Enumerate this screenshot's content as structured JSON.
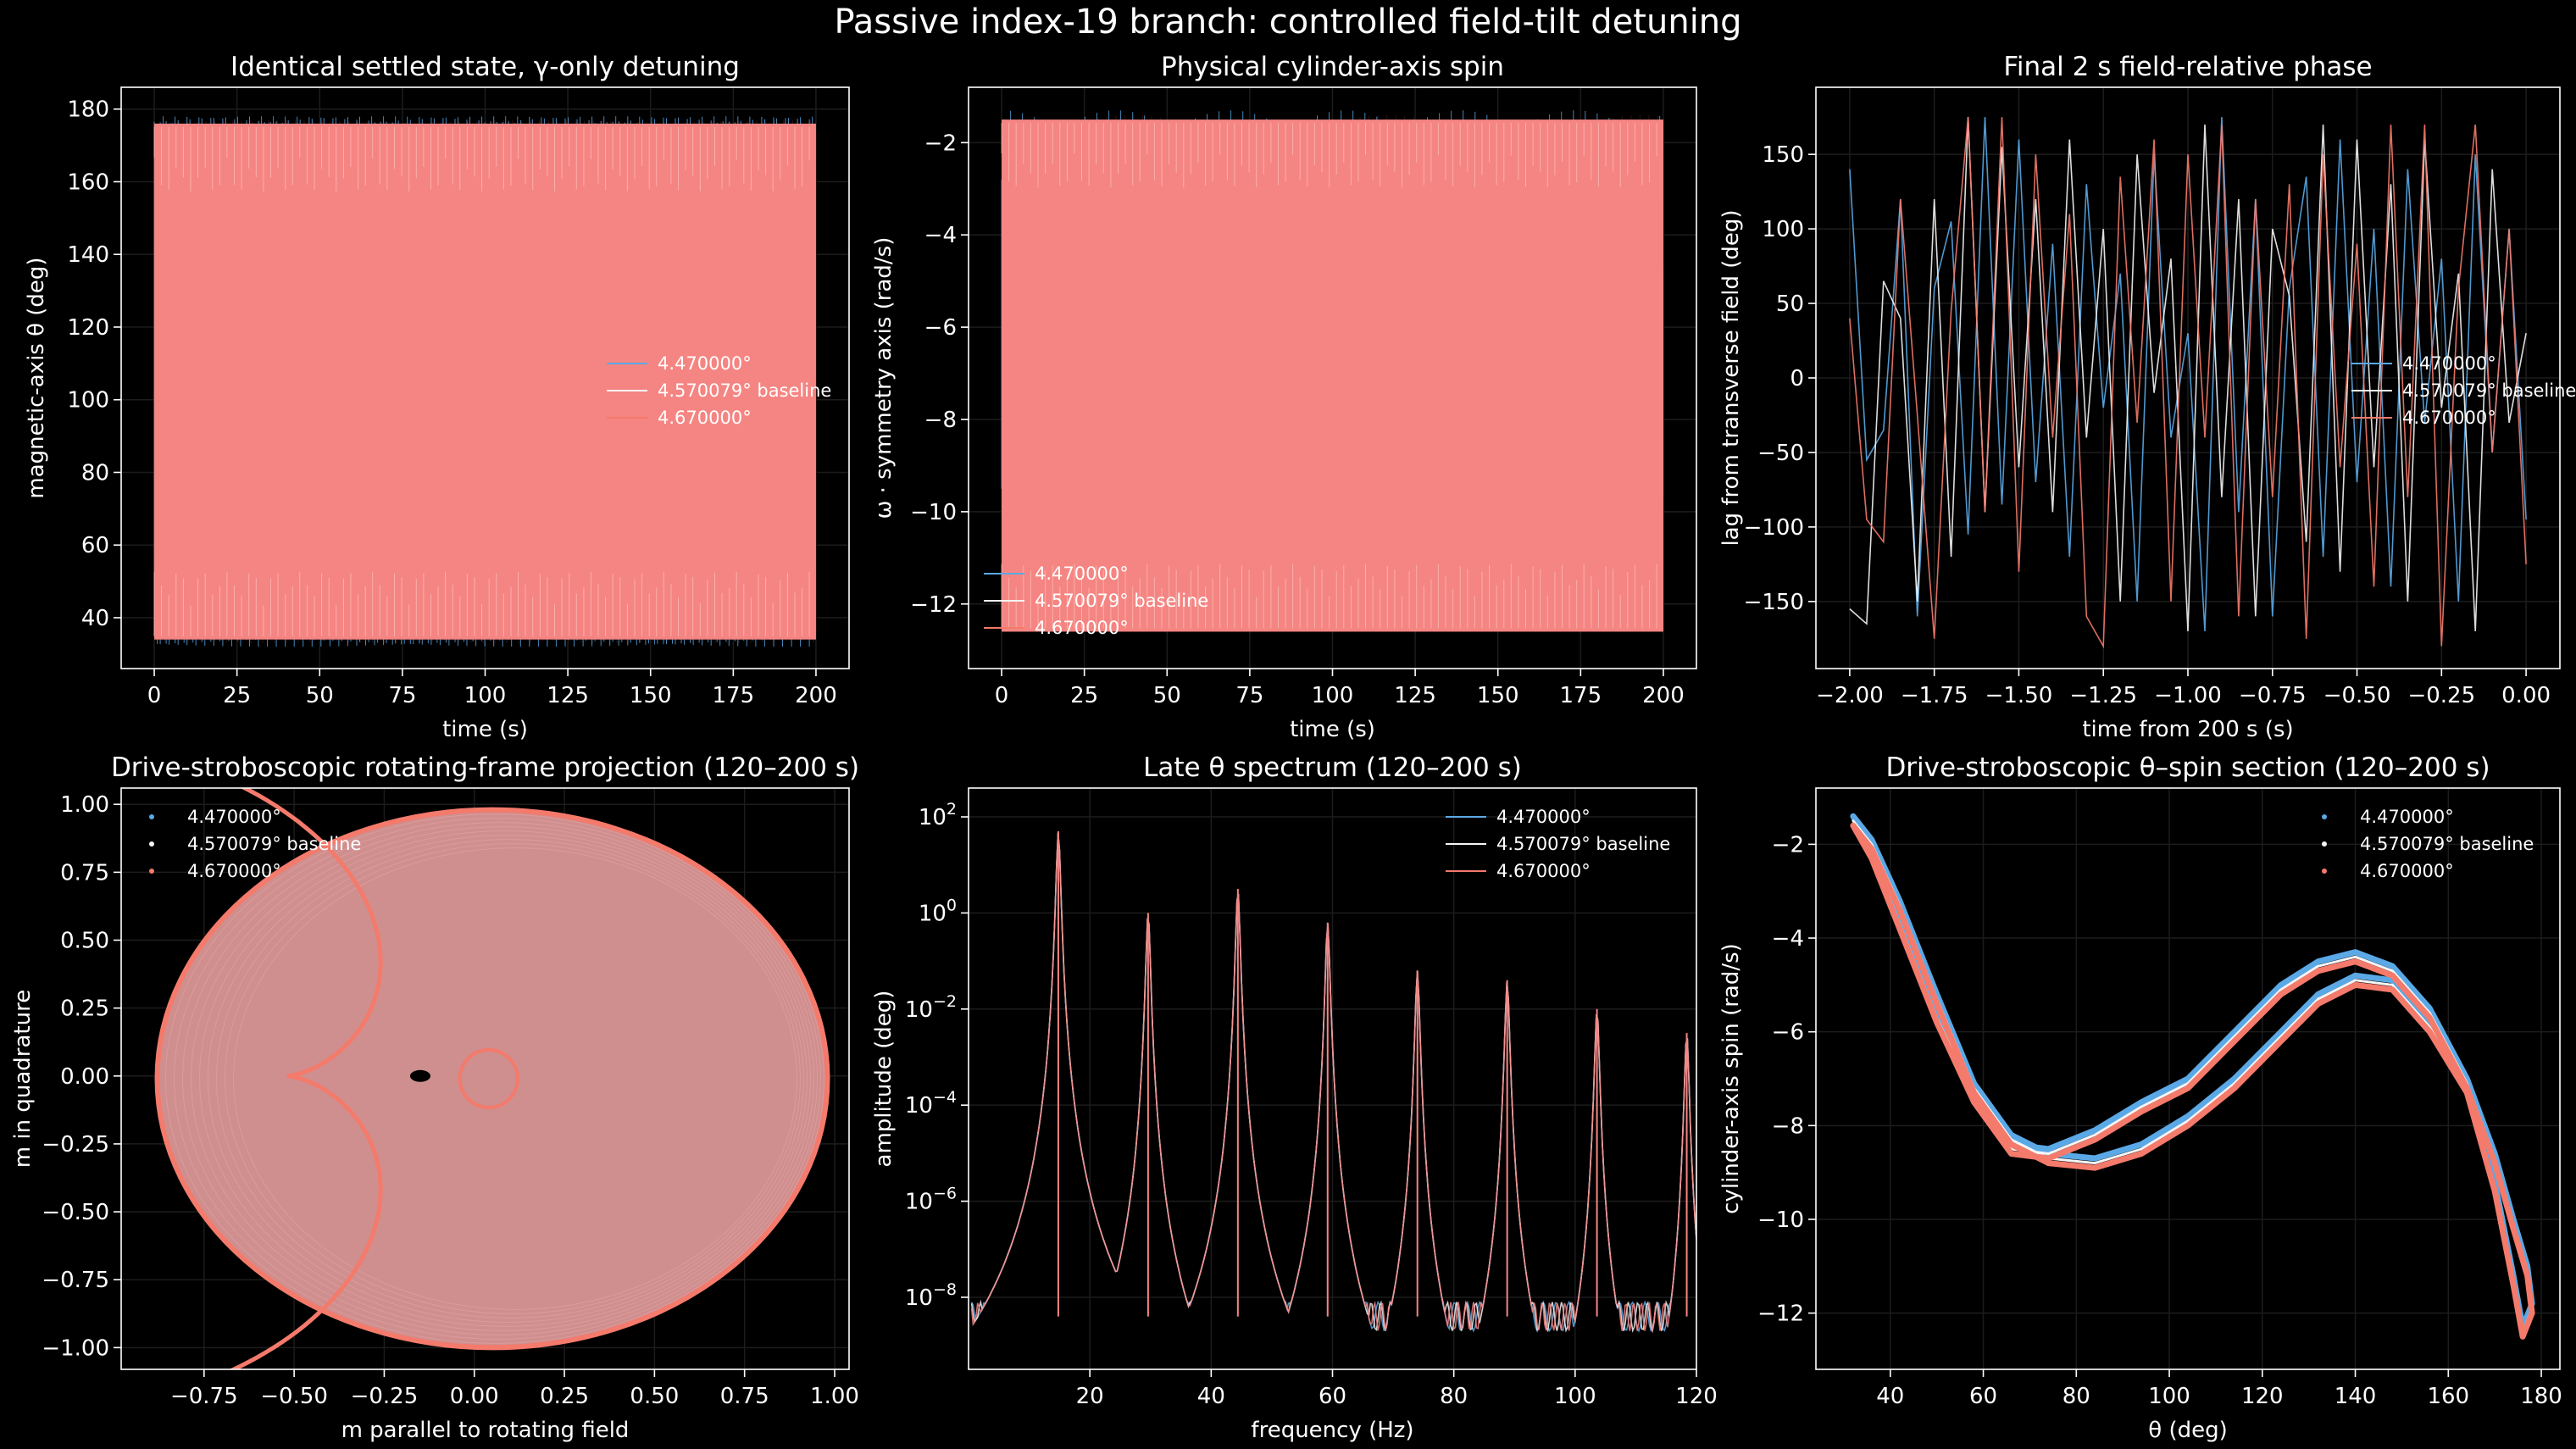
{
  "figure": {
    "suptitle": "Passive index-19 branch: controlled field-tilt detuning",
    "colors": {
      "a": "#5aa9e6",
      "b": "#f5f5f5",
      "c": "#f47a6b",
      "fill": "#f58582",
      "bg": "#000000"
    }
  },
  "chart_data": [
    {
      "type": "line",
      "title": "Identical settled state, γ-only detuning",
      "xlabel": "time (s)",
      "ylabel": "magnetic-axis θ (deg)",
      "xlim": [
        -10,
        210
      ],
      "ylim": [
        26,
        186
      ],
      "xticks": [
        0,
        25,
        50,
        75,
        100,
        125,
        150,
        175,
        200
      ],
      "yticks": [
        40,
        60,
        80,
        100,
        120,
        140,
        160,
        180
      ],
      "legend": [
        "4.470000°",
        "4.570079° baseline",
        "4.670000°"
      ],
      "legend_loc": "center right",
      "series": [
        {
          "name": "4.470000°",
          "envelope": {
            "x": [
              0,
              200
            ],
            "min": [
              32,
              32
            ],
            "max": [
              178,
              178
            ]
          }
        },
        {
          "name": "4.570079° baseline",
          "envelope": {
            "x": [
              0,
              200
            ],
            "min": [
              33,
              33
            ],
            "max": [
              177,
              177
            ]
          }
        },
        {
          "name": "4.670000°",
          "envelope": {
            "x": [
              0,
              200
            ],
            "min": [
              34,
              34
            ],
            "max": [
              176,
              176
            ]
          }
        }
      ]
    },
    {
      "type": "line",
      "title": "Physical cylinder-axis spin",
      "xlabel": "time (s)",
      "ylabel": "ω · symmetry axis (rad/s)",
      "xlim": [
        -10,
        210
      ],
      "ylim": [
        -13.4,
        -0.8
      ],
      "xticks": [
        0,
        25,
        50,
        75,
        100,
        125,
        150,
        175,
        200
      ],
      "yticks": [
        -12,
        -10,
        -8,
        -6,
        -4,
        -2
      ],
      "legend": [
        "4.470000°",
        "4.570079° baseline",
        "4.670000°"
      ],
      "legend_loc": "lower left",
      "series": [
        {
          "name": "4.470000°",
          "envelope": {
            "x": [
              0,
              200
            ],
            "min": [
              -12.5,
              -12.5
            ],
            "max": [
              -1.3,
              -1.3
            ]
          }
        },
        {
          "name": "4.570079° baseline",
          "envelope": {
            "x": [
              0,
              200
            ],
            "min": [
              -12.4,
              -12.4
            ],
            "max": [
              -1.4,
              -1.4
            ]
          }
        },
        {
          "name": "4.670000°",
          "envelope": {
            "x": [
              0,
              200
            ],
            "min": [
              -12.6,
              -12.6
            ],
            "max": [
              -1.5,
              -1.5
            ]
          }
        }
      ]
    },
    {
      "type": "line",
      "title": "Final 2 s field-relative phase",
      "xlabel": "time from 200 s (s)",
      "ylabel": "lag from transverse field (deg)",
      "xlim": [
        -2.1,
        0.1
      ],
      "ylim": [
        -195,
        195
      ],
      "xticks": [
        -2.0,
        -1.75,
        -1.5,
        -1.25,
        -1.0,
        -0.75,
        -0.5,
        -0.25,
        0.0
      ],
      "yticks": [
        -150,
        -100,
        -50,
        0,
        50,
        100,
        150
      ],
      "legend": [
        "4.470000°",
        "4.570079° baseline",
        "4.670000°"
      ],
      "legend_loc": "center right",
      "x": [
        -2.0,
        -1.95,
        -1.9,
        -1.85,
        -1.8,
        -1.75,
        -1.7,
        -1.65,
        -1.6,
        -1.55,
        -1.5,
        -1.45,
        -1.4,
        -1.35,
        -1.3,
        -1.25,
        -1.2,
        -1.15,
        -1.1,
        -1.05,
        -1.0,
        -0.95,
        -0.9,
        -0.85,
        -0.8,
        -0.75,
        -0.7,
        -0.65,
        -0.6,
        -0.55,
        -0.5,
        -0.45,
        -0.4,
        -0.35,
        -0.3,
        -0.25,
        -0.2,
        -0.15,
        -0.1,
        -0.05,
        0.0
      ],
      "series": [
        {
          "name": "4.470000°",
          "values": [
            140,
            -55,
            -35,
            120,
            -160,
            60,
            105,
            -105,
            175,
            -85,
            160,
            -70,
            90,
            -120,
            130,
            -20,
            70,
            -150,
            150,
            -40,
            30,
            -170,
            175,
            -90,
            120,
            -160,
            60,
            135,
            -120,
            160,
            -70,
            100,
            -140,
            140,
            -30,
            80,
            -150,
            150,
            -50,
            100,
            -95
          ]
        },
        {
          "name": "4.570079° baseline",
          "values": [
            -155,
            -165,
            65,
            40,
            -150,
            120,
            -120,
            175,
            -90,
            155,
            -60,
            120,
            -90,
            160,
            -40,
            100,
            -150,
            150,
            -10,
            80,
            -170,
            170,
            -80,
            120,
            -160,
            100,
            55,
            -110,
            170,
            -130,
            160,
            -60,
            130,
            -150,
            160,
            -20,
            70,
            -170,
            140,
            -30,
            30
          ]
        },
        {
          "name": "4.670000°",
          "values": [
            40,
            -95,
            -110,
            120,
            -25,
            -175,
            45,
            175,
            -90,
            175,
            -130,
            150,
            -40,
            110,
            -160,
            -180,
            135,
            -30,
            160,
            -150,
            150,
            -40,
            170,
            -160,
            120,
            -80,
            130,
            -175,
            150,
            -60,
            90,
            -140,
            170,
            -80,
            170,
            -180,
            60,
            170,
            -50,
            100,
            -125
          ]
        }
      ]
    },
    {
      "type": "scatter",
      "title": "Drive-stroboscopic rotating-frame projection (120–200 s)",
      "xlabel": "m parallel to rotating field",
      "ylabel": "m in quadrature",
      "xlim": [
        -0.98,
        1.04
      ],
      "ylim": [
        -1.08,
        1.06
      ],
      "xticks": [
        -0.75,
        -0.5,
        -0.25,
        0.0,
        0.25,
        0.5,
        0.75,
        1.0
      ],
      "yticks": [
        -1.0,
        -0.75,
        -0.5,
        -0.25,
        0.0,
        0.25,
        0.5,
        0.75,
        1.0
      ],
      "legend": [
        "4.470000°",
        "4.570079° baseline",
        "4.670000°"
      ],
      "legend_loc": "upper left",
      "series": [
        {
          "name": "4.470000°",
          "region": {
            "center": [
              0.05,
              -0.01
            ],
            "radius_x": 0.93,
            "radius_y": 0.99
          }
        },
        {
          "name": "4.570079° baseline",
          "blob": {
            "center": [
              -0.15,
              0.0
            ]
          }
        },
        {
          "name": "4.670000°",
          "cardioid": {
            "center": [
              -0.52,
              0.0
            ],
            "a": 0.52
          }
        }
      ]
    },
    {
      "type": "line",
      "title": "Late θ spectrum (120–200 s)",
      "xlabel": "frequency (Hz)",
      "ylabel": "amplitude (deg)",
      "xlim": [
        0,
        120
      ],
      "ylim": [
        -9.5,
        2.6
      ],
      "yscale": "log",
      "xticks": [
        20,
        40,
        60,
        80,
        100,
        120
      ],
      "yticks": [
        "10^-8",
        "10^-6",
        "10^-4",
        "10^-2",
        "10^0",
        "10^2"
      ],
      "legend": [
        "4.470000°",
        "4.570079° baseline",
        "4.670000°"
      ],
      "legend_loc": "upper right",
      "peaks": [
        {
          "x": 14.8,
          "log10": 1.7
        },
        {
          "x": 29.6,
          "log10": 0.0
        },
        {
          "x": 44.4,
          "log10": 0.5
        },
        {
          "x": 59.2,
          "log10": -0.2
        },
        {
          "x": 74.0,
          "log10": -1.2
        },
        {
          "x": 88.8,
          "log10": -1.4
        },
        {
          "x": 103.6,
          "log10": -2.0
        },
        {
          "x": 118.4,
          "log10": -2.5
        }
      ],
      "noise_floor_log10": -8.4
    },
    {
      "type": "scatter",
      "title": "Drive-stroboscopic θ–spin section (120–200 s)",
      "xlabel": "θ (deg)",
      "ylabel": "cylinder-axis spin (rad/s)",
      "xlim": [
        24,
        184
      ],
      "ylim": [
        -13.2,
        -0.8
      ],
      "xticks": [
        40,
        60,
        80,
        100,
        120,
        140,
        160,
        180
      ],
      "yticks": [
        -12,
        -10,
        -8,
        -6,
        -4,
        -2
      ],
      "legend": [
        "4.470000°",
        "4.570079° baseline",
        "4.670000°"
      ],
      "legend_loc": "upper right",
      "series": [
        {
          "name": "4.470000°",
          "x": [
            32,
            36,
            42,
            50,
            58,
            66,
            74,
            84,
            94,
            104,
            114,
            124,
            132,
            140,
            148,
            156,
            164,
            170,
            174,
            177,
            178,
            176,
            174,
            170,
            164,
            156,
            148,
            140,
            132,
            124,
            114,
            104,
            94,
            84,
            74,
            66,
            58,
            50,
            42,
            36,
            32
          ],
          "values": [
            -1.4,
            -2.1,
            -3.6,
            -5.6,
            -7.3,
            -8.4,
            -8.5,
            -8.1,
            -7.5,
            -7.0,
            -6.0,
            -5.0,
            -4.5,
            -4.3,
            -4.6,
            -5.5,
            -7.0,
            -8.6,
            -10.0,
            -11.0,
            -11.8,
            -12.3,
            -11.2,
            -9.2,
            -7.1,
            -5.8,
            -4.9,
            -4.8,
            -5.2,
            -6.0,
            -7.0,
            -7.8,
            -8.4,
            -8.7,
            -8.6,
            -8.2,
            -7.1,
            -5.2,
            -3.2,
            -1.9,
            -1.4
          ]
        },
        {
          "name": "4.570079° baseline",
          "x": [
            32,
            36,
            42,
            50,
            58,
            66,
            74,
            84,
            94,
            104,
            114,
            124,
            132,
            140,
            148,
            156,
            164,
            170,
            174,
            177,
            178,
            176,
            174,
            170,
            164,
            156,
            148,
            140,
            132,
            124,
            114,
            104,
            94,
            84,
            74,
            66,
            58,
            50,
            42,
            36,
            32
          ],
          "values": [
            -1.5,
            -2.2,
            -3.7,
            -5.7,
            -7.4,
            -8.5,
            -8.6,
            -8.2,
            -7.6,
            -7.1,
            -6.1,
            -5.1,
            -4.6,
            -4.4,
            -4.7,
            -5.6,
            -7.1,
            -8.7,
            -10.1,
            -11.1,
            -11.9,
            -12.4,
            -11.3,
            -9.3,
            -7.2,
            -5.9,
            -5.0,
            -4.9,
            -5.3,
            -6.1,
            -7.1,
            -7.9,
            -8.5,
            -8.8,
            -8.7,
            -8.3,
            -7.2,
            -5.3,
            -3.3,
            -2.0,
            -1.5
          ]
        },
        {
          "name": "4.670000°",
          "x": [
            32,
            36,
            42,
            50,
            58,
            66,
            74,
            84,
            94,
            104,
            114,
            124,
            132,
            140,
            148,
            156,
            164,
            170,
            174,
            177,
            178,
            176,
            174,
            170,
            164,
            156,
            148,
            140,
            132,
            124,
            114,
            104,
            94,
            84,
            74,
            66,
            58,
            50,
            42,
            36,
            32
          ],
          "values": [
            -1.6,
            -2.3,
            -3.8,
            -5.8,
            -7.5,
            -8.6,
            -8.7,
            -8.3,
            -7.7,
            -7.2,
            -6.2,
            -5.2,
            -4.7,
            -4.5,
            -4.8,
            -5.7,
            -7.2,
            -8.8,
            -10.2,
            -11.2,
            -12.0,
            -12.5,
            -11.4,
            -9.4,
            -7.3,
            -6.0,
            -5.1,
            -5.0,
            -5.4,
            -6.2,
            -7.2,
            -8.0,
            -8.6,
            -8.9,
            -8.8,
            -8.4,
            -7.3,
            -5.4,
            -3.4,
            -2.1,
            -1.6
          ]
        }
      ]
    }
  ]
}
